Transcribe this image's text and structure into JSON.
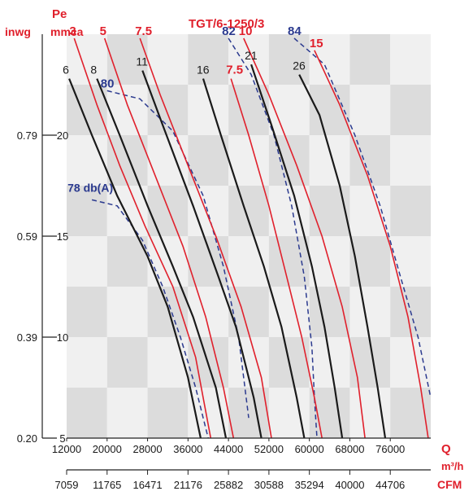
{
  "chart_data": {
    "type": "line",
    "title": "TGT/6-1250/3",
    "y_units": {
      "left_outer": "inwg",
      "left_inner_top": "Pe",
      "left_inner": "mmca"
    },
    "x_units": {
      "primary": "Q",
      "primary_unit": "m³/h",
      "secondary": "CFM"
    },
    "x_ticks": [
      "12000",
      "20000",
      "28000",
      "36000",
      "44000",
      "52000",
      "60000",
      "68000",
      "76000"
    ],
    "x2_ticks": [
      "7059",
      "11765",
      "16471",
      "21176",
      "25882",
      "30588",
      "35294",
      "40000",
      "44706"
    ],
    "y_ticks_mmca": [
      "5",
      "10",
      "15",
      "20"
    ],
    "y_ticks_inwg": [
      "0.20",
      "0.39",
      "0.59",
      "0.79"
    ],
    "xlim": [
      12000,
      84000
    ],
    "ylim": [
      5,
      25
    ],
    "grid": "alternating shaded bands",
    "colors": {
      "black_curve": "#1a1a1a",
      "red_curve": "#e0202c",
      "noise_curve": "#2b3a8f",
      "band_dark": "#dcdcdc",
      "band_light": "#f0f0f0"
    },
    "black_curves": [
      {
        "label": "6",
        "points": [
          [
            12500,
            22.8
          ],
          [
            17000,
            20.0
          ],
          [
            22000,
            17.0
          ],
          [
            28000,
            14.0
          ],
          [
            32000,
            11.5
          ],
          [
            36000,
            8.0
          ],
          [
            38500,
            5.0
          ]
        ]
      },
      {
        "label": "8",
        "points": [
          [
            18000,
            22.8
          ],
          [
            22500,
            20.0
          ],
          [
            28000,
            16.5
          ],
          [
            33000,
            13.5
          ],
          [
            37000,
            11.0
          ],
          [
            41500,
            7.5
          ],
          [
            43500,
            5.0
          ]
        ]
      },
      {
        "label": "11",
        "points": [
          [
            27000,
            23.2
          ],
          [
            31000,
            20.5
          ],
          [
            37000,
            16.5
          ],
          [
            42000,
            13.0
          ],
          [
            45500,
            10.5
          ],
          [
            49000,
            7.0
          ],
          [
            50500,
            5.0
          ]
        ]
      },
      {
        "label": "16",
        "points": [
          [
            39000,
            22.8
          ],
          [
            42500,
            20.0
          ],
          [
            47000,
            16.5
          ],
          [
            51000,
            13.5
          ],
          [
            54500,
            10.5
          ],
          [
            57500,
            7.0
          ],
          [
            59000,
            5.0
          ]
        ]
      },
      {
        "label": "21",
        "points": [
          [
            48500,
            23.5
          ],
          [
            52500,
            20.5
          ],
          [
            57000,
            17.0
          ],
          [
            60500,
            13.5
          ],
          [
            63000,
            10.5
          ],
          [
            65000,
            7.5
          ],
          [
            66500,
            5.0
          ]
        ]
      },
      {
        "label": "26",
        "points": [
          [
            58000,
            23.0
          ],
          [
            62000,
            21.0
          ],
          [
            66000,
            17.5
          ],
          [
            69000,
            14.0
          ],
          [
            71500,
            10.5
          ],
          [
            73500,
            7.5
          ],
          [
            75000,
            5.0
          ]
        ]
      }
    ],
    "red_curves": [
      {
        "label": "3",
        "points": [
          [
            13500,
            24.8
          ],
          [
            18000,
            21.5
          ],
          [
            22500,
            18.5
          ],
          [
            27500,
            15.5
          ],
          [
            33000,
            12.5
          ],
          [
            37500,
            9.0
          ],
          [
            40500,
            5.0
          ]
        ]
      },
      {
        "label": "5",
        "points": [
          [
            19500,
            24.8
          ],
          [
            24000,
            21.5
          ],
          [
            29500,
            18.0
          ],
          [
            35000,
            14.5
          ],
          [
            39500,
            11.0
          ],
          [
            43000,
            7.5
          ],
          [
            45000,
            5.0
          ]
        ]
      },
      {
        "label": "7.5",
        "points": [
          [
            26500,
            24.8
          ],
          [
            30500,
            22.0
          ],
          [
            36000,
            18.5
          ],
          [
            41500,
            15.0
          ],
          [
            46500,
            11.5
          ],
          [
            50500,
            8.0
          ],
          [
            52500,
            5.0
          ]
        ]
      },
      {
        "label": "7.5",
        "points": [
          [
            44500,
            22.8
          ],
          [
            48000,
            20.0
          ],
          [
            52000,
            16.5
          ],
          [
            55500,
            13.0
          ],
          [
            58500,
            10.0
          ],
          [
            61000,
            7.0
          ],
          [
            62500,
            5.0
          ]
        ]
      },
      {
        "label": "10",
        "points": [
          [
            47000,
            24.8
          ],
          [
            52000,
            22.0
          ],
          [
            57500,
            18.5
          ],
          [
            62500,
            15.0
          ],
          [
            66500,
            11.5
          ],
          [
            69500,
            8.0
          ],
          [
            71000,
            5.0
          ]
        ]
      },
      {
        "label": "15",
        "points": [
          [
            61000,
            24.2
          ],
          [
            66000,
            21.5
          ],
          [
            71500,
            18.0
          ],
          [
            76000,
            14.5
          ],
          [
            79500,
            11.0
          ],
          [
            82000,
            7.5
          ],
          [
            83500,
            5.0
          ]
        ]
      }
    ],
    "noise_curves": [
      {
        "label": "78 db(A)",
        "points": [
          [
            17000,
            16.8
          ],
          [
            22000,
            16.5
          ],
          [
            27000,
            14.8
          ],
          [
            31000,
            12.5
          ],
          [
            34500,
            10.0
          ],
          [
            37500,
            7.5
          ],
          [
            40000,
            5.0
          ]
        ]
      },
      {
        "label": "80",
        "points": [
          [
            20000,
            22.2
          ],
          [
            26500,
            21.8
          ],
          [
            33000,
            20.2
          ],
          [
            39000,
            17.0
          ],
          [
            43000,
            13.5
          ],
          [
            46000,
            10.0
          ],
          [
            48000,
            6.0
          ]
        ]
      },
      {
        "label": "82",
        "points": [
          [
            44000,
            24.8
          ],
          [
            48500,
            23.0
          ],
          [
            53000,
            20.0
          ],
          [
            56500,
            16.5
          ],
          [
            59000,
            13.0
          ],
          [
            60500,
            9.5
          ],
          [
            61000,
            7.0
          ],
          [
            61500,
            5.0
          ]
        ]
      },
      {
        "label": "84",
        "points": [
          [
            57000,
            24.8
          ],
          [
            63000,
            23.5
          ],
          [
            69000,
            20.0
          ],
          [
            74000,
            16.5
          ],
          [
            78000,
            13.0
          ],
          [
            81500,
            10.0
          ],
          [
            84000,
            7.0
          ]
        ]
      }
    ]
  }
}
